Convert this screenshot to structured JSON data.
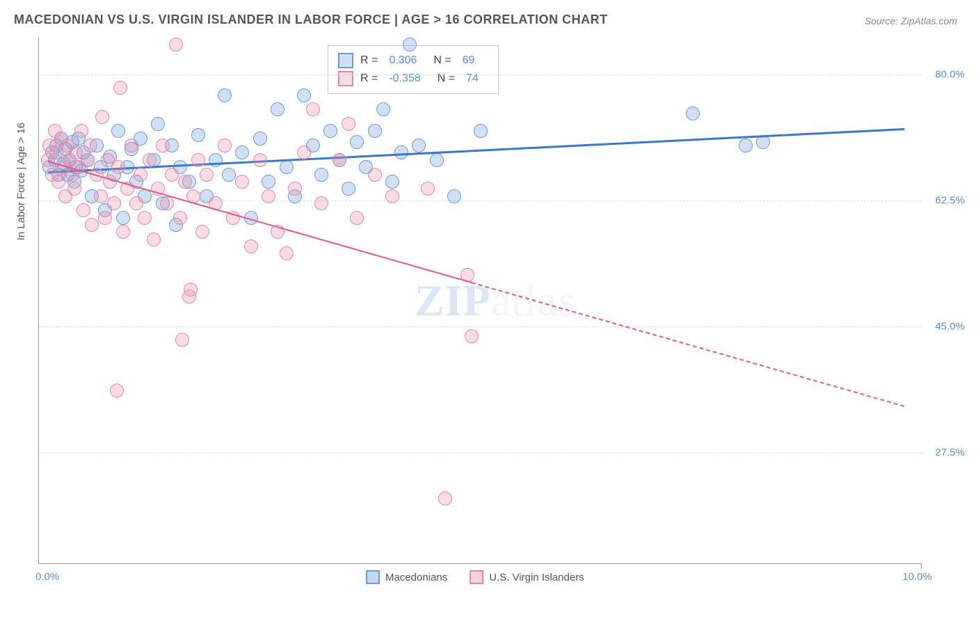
{
  "title": "MACEDONIAN VS U.S. VIRGIN ISLANDER IN LABOR FORCE | AGE > 16 CORRELATION CHART",
  "source": "Source: ZipAtlas.com",
  "y_axis_title": "In Labor Force | Age > 16",
  "watermark_zip": "ZIP",
  "watermark_atlas": "atlas",
  "chart": {
    "type": "scatter",
    "background_color": "#ffffff",
    "grid_color": "#dddddd",
    "axis_color": "#999999",
    "tick_label_color": "#5b8dd6",
    "tick_fontsize": 15,
    "title_fontsize": 18,
    "xlim": [
      0,
      10
    ],
    "ylim": [
      12,
      85
    ],
    "x_ticks": [
      {
        "value": 0,
        "label": "0.0%"
      },
      {
        "value": 10,
        "label": "10.0%"
      }
    ],
    "y_ticks": [
      {
        "value": 27.5,
        "label": "27.5%"
      },
      {
        "value": 45.0,
        "label": "45.0%"
      },
      {
        "value": 62.5,
        "label": "62.5%"
      },
      {
        "value": 80.0,
        "label": "80.0%"
      }
    ],
    "series": [
      {
        "name": "Macedonians",
        "marker_fill": "rgba(123,167,224,0.35)",
        "marker_stroke": "#6a9bd8",
        "marker_radius": 10,
        "line_color": "#3b78c9",
        "line_width": 3,
        "R": "0.306",
        "N": "69",
        "trend": {
          "x1": 0.1,
          "y1": 66.5,
          "x2": 9.8,
          "y2": 72.5,
          "dashed_from_x": null
        },
        "points": [
          [
            0.12,
            67
          ],
          [
            0.15,
            69
          ],
          [
            0.18,
            68
          ],
          [
            0.2,
            70
          ],
          [
            0.22,
            66
          ],
          [
            0.25,
            71
          ],
          [
            0.28,
            67.5
          ],
          [
            0.3,
            69.5
          ],
          [
            0.32,
            66
          ],
          [
            0.35,
            68
          ],
          [
            0.38,
            70.5
          ],
          [
            0.4,
            65
          ],
          [
            0.42,
            67
          ],
          [
            0.45,
            71
          ],
          [
            0.48,
            66.5
          ],
          [
            0.5,
            69
          ],
          [
            0.55,
            68
          ],
          [
            0.6,
            63
          ],
          [
            0.65,
            70
          ],
          [
            0.7,
            67
          ],
          [
            0.75,
            61
          ],
          [
            0.8,
            68.5
          ],
          [
            0.85,
            66
          ],
          [
            0.9,
            72
          ],
          [
            0.95,
            60
          ],
          [
            1.0,
            67
          ],
          [
            1.05,
            69.5
          ],
          [
            1.1,
            65
          ],
          [
            1.15,
            71
          ],
          [
            1.2,
            63
          ],
          [
            1.3,
            68
          ],
          [
            1.35,
            73
          ],
          [
            1.4,
            62
          ],
          [
            1.5,
            70
          ],
          [
            1.55,
            59
          ],
          [
            1.6,
            67
          ],
          [
            1.7,
            65
          ],
          [
            1.8,
            71.5
          ],
          [
            1.9,
            63
          ],
          [
            2.0,
            68
          ],
          [
            2.1,
            77
          ],
          [
            2.15,
            66
          ],
          [
            2.3,
            69
          ],
          [
            2.4,
            60
          ],
          [
            2.5,
            71
          ],
          [
            2.6,
            65
          ],
          [
            2.7,
            75
          ],
          [
            2.8,
            67
          ],
          [
            2.9,
            63
          ],
          [
            3.0,
            77
          ],
          [
            3.1,
            70
          ],
          [
            3.2,
            66
          ],
          [
            3.3,
            72
          ],
          [
            3.4,
            68
          ],
          [
            3.5,
            64
          ],
          [
            3.6,
            70.5
          ],
          [
            3.7,
            67
          ],
          [
            3.8,
            72
          ],
          [
            3.9,
            75
          ],
          [
            4.0,
            65
          ],
          [
            4.1,
            69
          ],
          [
            4.2,
            84
          ],
          [
            4.3,
            70
          ],
          [
            4.5,
            68
          ],
          [
            4.7,
            63
          ],
          [
            5.0,
            72
          ],
          [
            7.4,
            74.5
          ],
          [
            8.0,
            70
          ],
          [
            8.2,
            70.5
          ]
        ]
      },
      {
        "name": "U.S. Virgin Islanders",
        "marker_fill": "rgba(235,140,170,0.30)",
        "marker_stroke": "#e088a8",
        "marker_radius": 10,
        "line_color": "#e05a8a",
        "line_width": 2.5,
        "R": "-0.358",
        "N": "74",
        "trend": {
          "x1": 0.1,
          "y1": 68,
          "x2": 9.8,
          "y2": 34,
          "dashed_from_x": 4.9
        },
        "points": [
          [
            0.1,
            68
          ],
          [
            0.12,
            70
          ],
          [
            0.15,
            66
          ],
          [
            0.18,
            72
          ],
          [
            0.2,
            69
          ],
          [
            0.22,
            65
          ],
          [
            0.25,
            71
          ],
          [
            0.28,
            67
          ],
          [
            0.3,
            63
          ],
          [
            0.32,
            70
          ],
          [
            0.35,
            68
          ],
          [
            0.38,
            66
          ],
          [
            0.4,
            64
          ],
          [
            0.42,
            69
          ],
          [
            0.45,
            67
          ],
          [
            0.48,
            72
          ],
          [
            0.5,
            61
          ],
          [
            0.55,
            68
          ],
          [
            0.58,
            70
          ],
          [
            0.6,
            59
          ],
          [
            0.65,
            66
          ],
          [
            0.7,
            63
          ],
          [
            0.72,
            74
          ],
          [
            0.75,
            60
          ],
          [
            0.78,
            68
          ],
          [
            0.8,
            65
          ],
          [
            0.85,
            62
          ],
          [
            0.88,
            36
          ],
          [
            0.9,
            67
          ],
          [
            0.92,
            78
          ],
          [
            0.95,
            58
          ],
          [
            1.0,
            64
          ],
          [
            1.05,
            70
          ],
          [
            1.1,
            62
          ],
          [
            1.15,
            66
          ],
          [
            1.2,
            60
          ],
          [
            1.25,
            68
          ],
          [
            1.3,
            57
          ],
          [
            1.35,
            64
          ],
          [
            1.4,
            70
          ],
          [
            1.45,
            62
          ],
          [
            1.5,
            66
          ],
          [
            1.55,
            84
          ],
          [
            1.6,
            60
          ],
          [
            1.62,
            43
          ],
          [
            1.65,
            65
          ],
          [
            1.7,
            49
          ],
          [
            1.72,
            50
          ],
          [
            1.75,
            63
          ],
          [
            1.8,
            68
          ],
          [
            1.85,
            58
          ],
          [
            1.9,
            66
          ],
          [
            2.0,
            62
          ],
          [
            2.1,
            70
          ],
          [
            2.2,
            60
          ],
          [
            2.3,
            65
          ],
          [
            2.4,
            56
          ],
          [
            2.5,
            68
          ],
          [
            2.6,
            63
          ],
          [
            2.7,
            58
          ],
          [
            2.8,
            55
          ],
          [
            2.9,
            64
          ],
          [
            3.0,
            69
          ],
          [
            3.1,
            75
          ],
          [
            3.2,
            62
          ],
          [
            3.4,
            68
          ],
          [
            3.5,
            73
          ],
          [
            3.6,
            60
          ],
          [
            3.8,
            66
          ],
          [
            4.0,
            63
          ],
          [
            4.4,
            64
          ],
          [
            4.6,
            21
          ],
          [
            4.9,
            43.5
          ],
          [
            4.85,
            52
          ]
        ]
      }
    ]
  },
  "legend_bottom": [
    {
      "label": "Macedonians",
      "fill": "rgba(123,167,224,0.45)",
      "stroke": "#6a9bd8"
    },
    {
      "label": "U.S. Virgin Islanders",
      "fill": "rgba(235,140,170,0.40)",
      "stroke": "#e088a8"
    }
  ]
}
